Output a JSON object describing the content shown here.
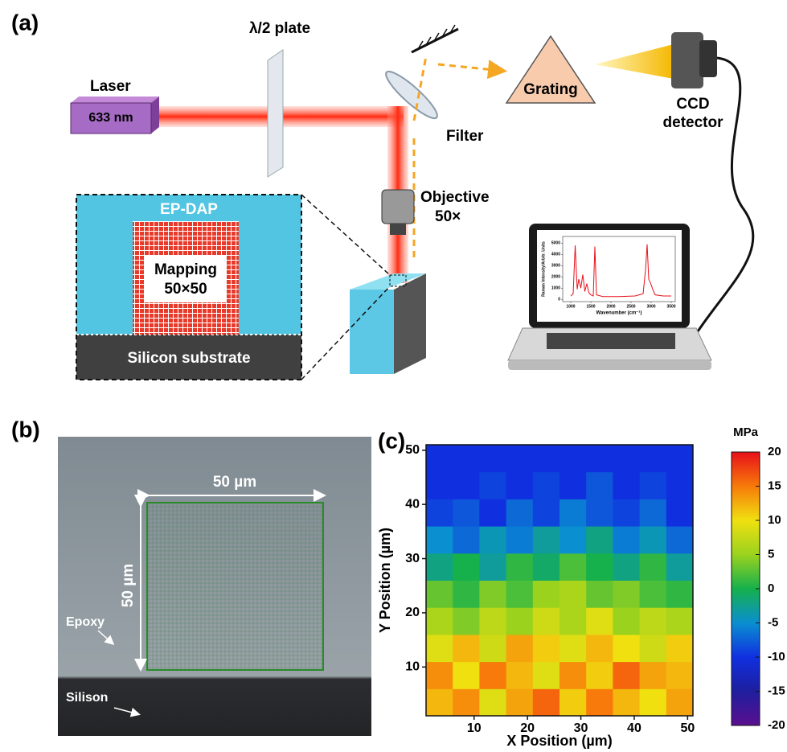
{
  "panels": {
    "a": "(a)",
    "b": "(b)",
    "c": "(c)"
  },
  "setup": {
    "laser": "Laser",
    "laser_wavelength": "633 nm",
    "half_wave_plate": "λ/2 plate",
    "grating": "Grating",
    "ccd_detector": [
      "CCD",
      "detector"
    ],
    "filter": "Filter",
    "objective": [
      "Objective",
      "50×"
    ],
    "sample": {
      "coating": "EP-DAP",
      "mapping": [
        "Mapping",
        "50×50"
      ],
      "substrate": "Silicon substrate"
    }
  },
  "micrograph": {
    "width": "50 µm",
    "height": "50 µm",
    "epoxy": "Epoxy",
    "silicon": "Silison"
  },
  "chart_data": [
    {
      "type": "line",
      "ylabel": "Raman Intensity/Arbitr. Units",
      "xlabel": "Wavenumber (cm⁻¹)",
      "x": [
        1000,
        1060,
        1110,
        1160,
        1200,
        1250,
        1300,
        1350,
        1400,
        1450,
        1500,
        1560,
        1600,
        1640,
        1800,
        2200,
        2600,
        2800,
        2860,
        2900,
        2940,
        2990,
        3050,
        3100,
        3300,
        3500
      ],
      "series": [
        {
          "color": "#e8101a",
          "values": [
            300,
            500,
            4800,
            900,
            1800,
            1000,
            2200,
            700,
            1400,
            600,
            400,
            300,
            4700,
            400,
            250,
            250,
            300,
            500,
            2600,
            4900,
            1800,
            1400,
            800,
            400,
            300,
            300
          ]
        }
      ],
      "xlim": [
        800,
        3600
      ],
      "ylim": [
        -200,
        5600
      ],
      "xticks": [
        1000,
        1500,
        2000,
        2500,
        3000,
        3500
      ],
      "yticks": [
        0,
        1000,
        2000,
        3000,
        4000,
        5000
      ]
    },
    {
      "type": "heatmap",
      "xlabel": "X Position (µm)",
      "ylabel": "Y Position (µm)",
      "x": [
        3.5,
        8.5,
        13.5,
        18.5,
        23.5,
        28.5,
        33.5,
        38.5,
        43.5,
        48.5
      ],
      "y": [
        3.5,
        8.5,
        13.5,
        18.5,
        23.5,
        28.5,
        33.5,
        38.5,
        43.5,
        48.5
      ],
      "values": [
        [
          12,
          14,
          9,
          13,
          16,
          11,
          15,
          12,
          10,
          13
        ],
        [
          14,
          10,
          15,
          12,
          9,
          14,
          11,
          16,
          13,
          12
        ],
        [
          9,
          12,
          8,
          13,
          11,
          9,
          12,
          10,
          8,
          11
        ],
        [
          6,
          4,
          7,
          5,
          8,
          6,
          9,
          5,
          7,
          6
        ],
        [
          3,
          1,
          4,
          2,
          5,
          6,
          3,
          4,
          2,
          1
        ],
        [
          -2,
          0,
          -3,
          1,
          -1,
          2,
          0,
          -2,
          1,
          -3
        ],
        [
          -5,
          -7,
          -4,
          -6,
          -3,
          -5,
          -2,
          -6,
          -4,
          -7
        ],
        [
          -9,
          -8,
          -10,
          -7,
          -9,
          -6,
          -8,
          -9,
          -7,
          -10
        ],
        [
          -10,
          -10,
          -9,
          -10,
          -9,
          -10,
          -8,
          -10,
          -9,
          -10
        ],
        [
          -10,
          -10,
          -10,
          -10,
          -10,
          -10,
          -10,
          -10,
          -10,
          -10
        ]
      ],
      "xlim": [
        1,
        51
      ],
      "ylim": [
        1,
        51
      ],
      "xticks": [
        10,
        20,
        30,
        40,
        50
      ],
      "yticks": [
        10,
        20,
        30,
        40,
        50
      ],
      "colorbar": {
        "label": "MPa",
        "lim": [
          -20,
          20
        ],
        "ticks": [
          20,
          15,
          10,
          5,
          0,
          -5,
          -10,
          -15,
          -20
        ]
      }
    }
  ]
}
